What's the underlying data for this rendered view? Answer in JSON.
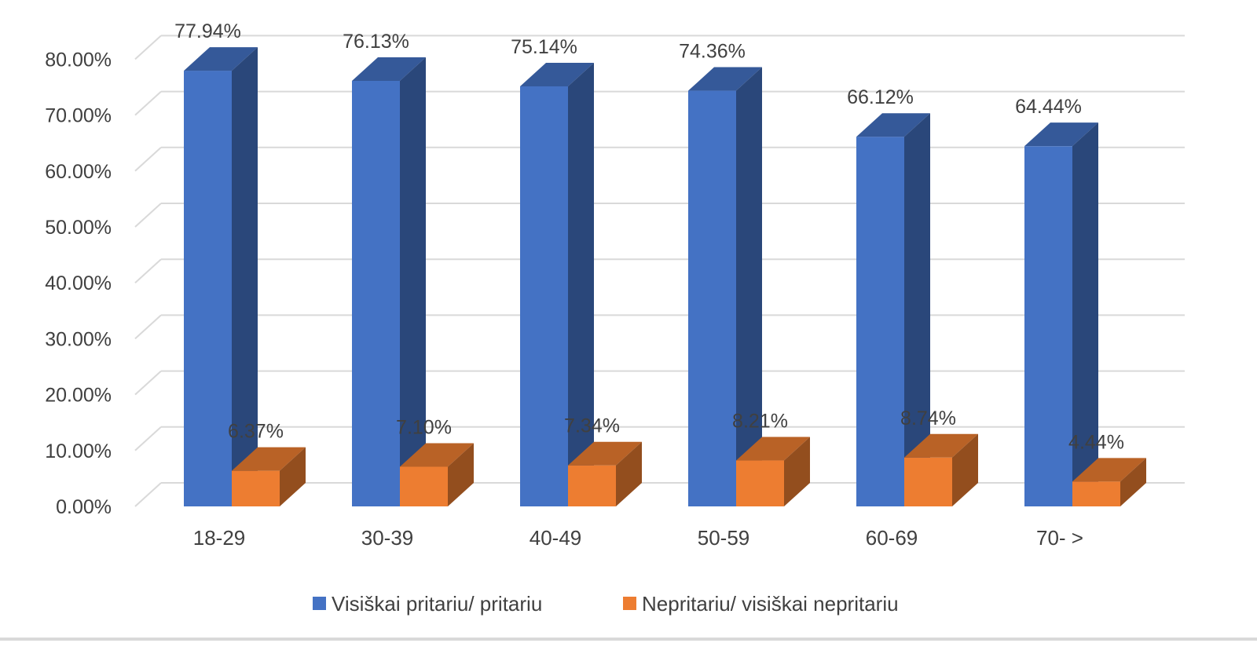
{
  "chart_data": {
    "type": "bar",
    "categories": [
      "18-29",
      "30-39",
      "40-49",
      "50-59",
      "60-69",
      "70- >"
    ],
    "series": [
      {
        "name": "Visiškai pritariu/ pritariu",
        "color": "#4472C4",
        "values": [
          77.94,
          76.13,
          75.14,
          74.36,
          66.12,
          64.44
        ],
        "labels": [
          "77.94%",
          "76.13%",
          "75.14%",
          "74.36%",
          "66.12%",
          "64.44%"
        ]
      },
      {
        "name": "Nepritariu/ visiškai nepritariu",
        "color": "#ED7D31",
        "values": [
          6.37,
          7.1,
          7.34,
          8.21,
          8.74,
          4.44
        ],
        "labels": [
          "6.37%",
          "7.10%",
          "7.34%",
          "8.21%",
          "8.74%",
          "4.44%"
        ]
      }
    ],
    "yticks": [
      "0.00%",
      "10.00%",
      "20.00%",
      "30.00%",
      "40.00%",
      "50.00%",
      "60.00%",
      "70.00%",
      "80.00%"
    ],
    "ylim": [
      0,
      80
    ],
    "grid": true,
    "legend_position": "bottom",
    "style": "3d-clustered-column"
  }
}
